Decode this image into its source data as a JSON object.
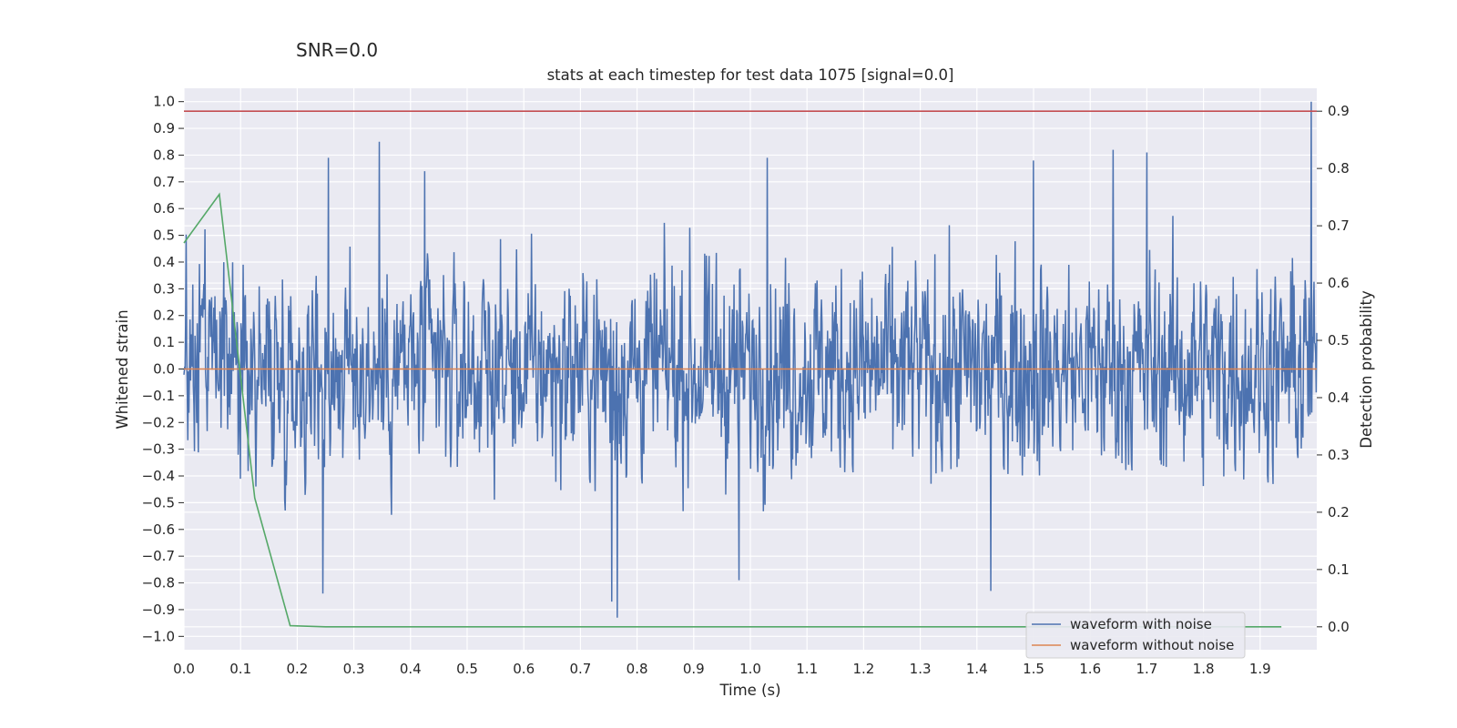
{
  "chart_data": {
    "type": "line",
    "suptitle": "SNR=0.0",
    "title": "stats at each timestep for test data 1075 [signal=0.0]",
    "xlabel": "Time (s)",
    "ylabel": "Whitened strain",
    "ylabel_right": "Detection probability",
    "xlim": [
      0.0,
      2.0
    ],
    "ylim": [
      -1.05,
      1.05
    ],
    "ylim_right": [
      -0.04,
      0.94
    ],
    "x_ticks": [
      "0.0",
      "0.1",
      "0.2",
      "0.3",
      "0.4",
      "0.5",
      "0.6",
      "0.7",
      "0.8",
      "0.9",
      "1.0",
      "1.1",
      "1.2",
      "1.3",
      "1.4",
      "1.5",
      "1.6",
      "1.7",
      "1.8",
      "1.9"
    ],
    "y_ticks": [
      "1.0",
      "0.9",
      "0.8",
      "0.7",
      "0.6",
      "0.5",
      "0.4",
      "0.3",
      "0.2",
      "0.1",
      "0.0",
      "−0.1",
      "−0.2",
      "−0.3",
      "−0.4",
      "−0.5",
      "−0.6",
      "−0.7",
      "−0.8",
      "−0.9",
      "−1.0"
    ],
    "y_right_ticks": [
      "0.9",
      "0.8",
      "0.7",
      "0.6",
      "0.5",
      "0.4",
      "0.3",
      "0.2",
      "0.1",
      "0.0"
    ],
    "grid": true,
    "legend_position": "lower-right",
    "series": [
      {
        "name": "waveform with noise",
        "color": "#4c72b0",
        "axis": "left",
        "x_range": [
          0.0,
          2.0
        ],
        "n_points": 2048,
        "value_range": [
          -0.93,
          1.0
        ],
        "peaks": [
          {
            "x": 0.255,
            "y": 0.79
          },
          {
            "x": 0.345,
            "y": 0.85
          },
          {
            "x": 0.425,
            "y": 0.74
          },
          {
            "x": 1.03,
            "y": 0.79
          },
          {
            "x": 1.64,
            "y": 0.82
          },
          {
            "x": 1.7,
            "y": 0.81
          },
          {
            "x": 1.5,
            "y": 0.78
          },
          {
            "x": 1.99,
            "y": 1.0
          }
        ],
        "troughs": [
          {
            "x": 0.245,
            "y": -0.84
          },
          {
            "x": 0.765,
            "y": -0.93
          },
          {
            "x": 0.755,
            "y": -0.87
          },
          {
            "x": 0.98,
            "y": -0.79
          },
          {
            "x": 1.425,
            "y": -0.83
          }
        ]
      },
      {
        "name": "waveform without noise",
        "color": "#dd8452",
        "axis": "left",
        "x": [
          0.0,
          2.0
        ],
        "y": [
          0.0,
          0.0
        ]
      },
      {
        "color": "#55a868",
        "axis": "right",
        "x": [
          0.0,
          0.0625,
          0.125,
          0.1875,
          0.25,
          0.3125,
          0.5,
          0.75,
          1.0,
          1.25,
          1.5,
          1.75,
          1.9375
        ],
        "y": [
          0.67,
          0.755,
          0.225,
          0.002,
          0.0,
          0.0,
          0.0,
          0.0,
          0.0,
          0.0,
          0.0,
          0.0,
          0.0
        ]
      },
      {
        "color": "#c44e52",
        "axis": "right",
        "x": [
          0.0,
          2.0
        ],
        "y": [
          0.9,
          0.9
        ]
      }
    ]
  }
}
